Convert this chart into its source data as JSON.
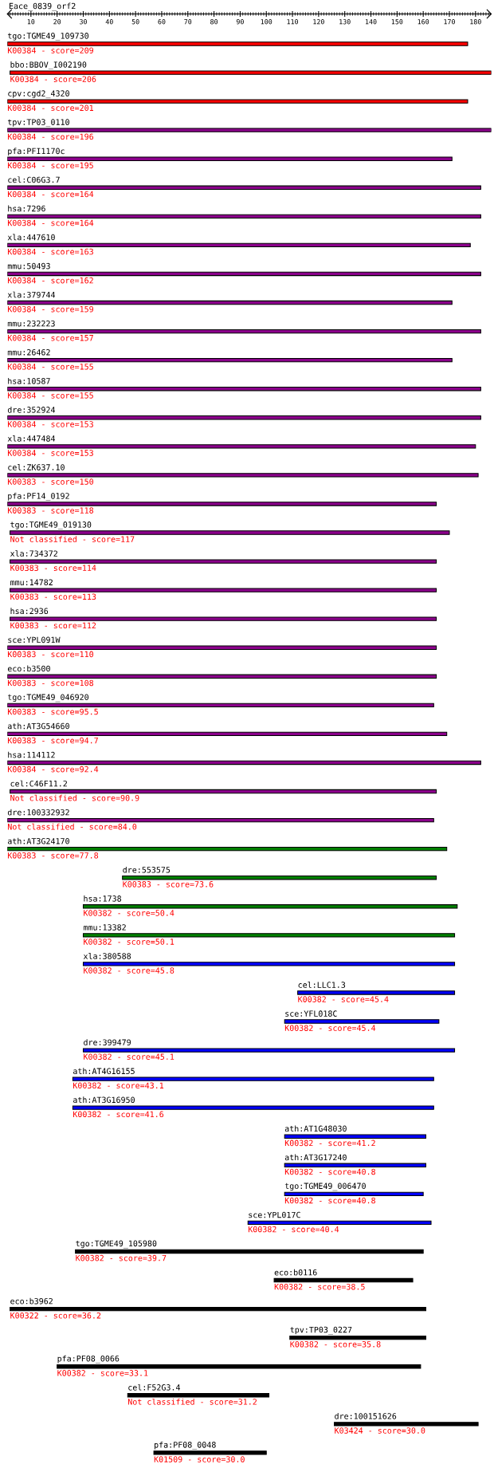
{
  "chart_data": {
    "type": "bar",
    "orientation": "horizontal",
    "title": "Eace_0839_orf2",
    "categories": [
      "tgo:TGME49_109730",
      "bbo:BBOV_I002190",
      "cpv:cgd2_4320",
      "tpv:TP03_0110",
      "pfa:PFI1170c",
      "cel:C06G3.7",
      "hsa:7296",
      "xla:447610",
      "mmu:50493",
      "xla:379744",
      "mmu:232223",
      "mmu:26462",
      "hsa:10587",
      "dre:352924",
      "xla:447484",
      "cel:ZK637.10",
      "pfa:PF14_0192",
      "tgo:TGME49_019130",
      "xla:734372",
      "mmu:14782",
      "hsa:2936",
      "sce:YPL091W",
      "eco:b3500",
      "tgo:TGME49_046920",
      "ath:AT3G54660",
      "hsa:114112",
      "cel:C46F11.2",
      "dre:100332932",
      "ath:AT3G24170",
      "dre:553575",
      "hsa:1738",
      "mmu:13382",
      "xla:380588",
      "cel:LLC1.3",
      "sce:YFL018C",
      "dre:399479",
      "ath:AT4G16155",
      "ath:AT3G16950",
      "ath:AT1G48030",
      "ath:AT3G17240",
      "tgo:TGME49_006470",
      "sce:YPL017C",
      "tgo:TGME49_105980",
      "eco:b0116",
      "eco:b3962",
      "tpv:TP03_0227",
      "pfa:PF08_0066",
      "cel:F52G3.4",
      "dre:100151626",
      "pfa:PF08_0048"
    ],
    "base": [
      1,
      2,
      1,
      1,
      1,
      1,
      1,
      1,
      1,
      1,
      1,
      1,
      1,
      1,
      1,
      1,
      1,
      2,
      2,
      2,
      2,
      1,
      1,
      1,
      1,
      1,
      2,
      1,
      1,
      45,
      30,
      30,
      30,
      112,
      107,
      30,
      26,
      26,
      107,
      107,
      107,
      93,
      27,
      103,
      2,
      109,
      20,
      47,
      126,
      57
    ],
    "values": [
      176,
      184,
      176,
      185,
      170,
      181,
      181,
      177,
      181,
      170,
      181,
      170,
      181,
      181,
      179,
      180,
      164,
      168,
      163,
      163,
      163,
      164,
      164,
      163,
      168,
      181,
      163,
      163,
      168,
      120,
      143,
      142,
      142,
      60,
      59,
      142,
      138,
      138,
      54,
      54,
      53,
      70,
      133,
      53,
      159,
      52,
      139,
      54,
      55,
      43
    ],
    "colors": [
      "#ff0000",
      "#ff0000",
      "#ff0000",
      "#8b008b",
      "#8b008b",
      "#8b008b",
      "#8b008b",
      "#8b008b",
      "#8b008b",
      "#8b008b",
      "#8b008b",
      "#8b008b",
      "#8b008b",
      "#8b008b",
      "#8b008b",
      "#8b008b",
      "#8b008b",
      "#8b008b",
      "#8b008b",
      "#8b008b",
      "#8b008b",
      "#8b008b",
      "#8b008b",
      "#8b008b",
      "#8b008b",
      "#8b008b",
      "#8b008b",
      "#8b008b",
      "#008000",
      "#008000",
      "#008000",
      "#008000",
      "#0000ff",
      "#0000ff",
      "#0000ff",
      "#0000ff",
      "#0000ff",
      "#0000ff",
      "#0000ff",
      "#0000ff",
      "#0000ff",
      "#0000ff",
      "#000000",
      "#000000",
      "#000000",
      "#000000",
      "#000000",
      "#000000",
      "#000000",
      "#000000"
    ],
    "annotations": [
      "K00384 - score=209",
      "K00384 - score=206",
      "K00384 - score=201",
      "K00384 - score=196",
      "K00384 - score=195",
      "K00384 - score=164",
      "K00384 - score=164",
      "K00384 - score=163",
      "K00384 - score=162",
      "K00384 - score=159",
      "K00384 - score=157",
      "K00384 - score=155",
      "K00384 - score=155",
      "K00384 - score=153",
      "K00384 - score=153",
      "K00383 - score=150",
      "K00383 - score=118",
      "Not classified - score=117",
      "K00383 - score=114",
      "K00383 - score=113",
      "K00383 - score=112",
      "K00383 - score=110",
      "K00383 - score=108",
      "K00383 - score=95.5",
      "K00383 - score=94.7",
      "K00384 - score=92.4",
      "Not classified - score=90.9",
      "Not classified - score=84.0",
      "K00383 - score=77.8",
      "K00383 - score=73.6",
      "K00382 - score=50.4",
      "K00382 - score=50.1",
      "K00382 - score=45.8",
      "K00382 - score=45.4",
      "K00382 - score=45.4",
      "K00382 - score=45.1",
      "K00382 - score=43.1",
      "K00382 - score=41.6",
      "K00382 - score=41.2",
      "K00382 - score=40.8",
      "K00382 - score=40.8",
      "K00382 - score=40.4",
      "K00382 - score=39.7",
      "K00382 - score=38.5",
      "K00322 - score=36.2",
      "K00382 - score=35.8",
      "K00382 - score=33.1",
      "Not classified - score=31.2",
      "K03424 - score=30.0",
      "K01509 - score=30.0"
    ],
    "xlim": [
      1,
      186
    ],
    "xticks": [
      {
        "value": 2,
        "label": null
      },
      {
        "value": 3,
        "label": null
      },
      {
        "value": 4,
        "label": null
      },
      {
        "value": 5,
        "label": null
      },
      {
        "value": 6,
        "label": null
      },
      {
        "value": 7,
        "label": null
      },
      {
        "value": 8,
        "label": null
      },
      {
        "value": 9,
        "label": null
      },
      10,
      {
        "value": 11,
        "label": null
      },
      {
        "value": 12,
        "label": null
      },
      {
        "value": 13,
        "label": null
      },
      {
        "value": 14,
        "label": null
      },
      {
        "value": 15,
        "label": null
      },
      {
        "value": 16,
        "label": null
      },
      {
        "value": 17,
        "label": null
      },
      {
        "value": 18,
        "label": null
      },
      {
        "value": 19,
        "label": null
      },
      20,
      {
        "value": 21,
        "label": null
      },
      {
        "value": 22,
        "label": null
      },
      {
        "value": 23,
        "label": null
      },
      {
        "value": 24,
        "label": null
      },
      {
        "value": 25,
        "label": null
      },
      {
        "value": 26,
        "label": null
      },
      {
        "value": 27,
        "label": null
      },
      {
        "value": 28,
        "label": null
      },
      {
        "value": 29,
        "label": null
      },
      30,
      {
        "value": 31,
        "label": null
      },
      {
        "value": 32,
        "label": null
      },
      {
        "value": 33,
        "label": null
      },
      {
        "value": 34,
        "label": null
      },
      {
        "value": 35,
        "label": null
      },
      {
        "value": 36,
        "label": null
      },
      {
        "value": 37,
        "label": null
      },
      {
        "value": 38,
        "label": null
      },
      {
        "value": 39,
        "label": null
      },
      40,
      {
        "value": 41,
        "label": null
      },
      {
        "value": 42,
        "label": null
      },
      {
        "value": 43,
        "label": null
      },
      {
        "value": 44,
        "label": null
      },
      {
        "value": 45,
        "label": null
      },
      {
        "value": 46,
        "label": null
      },
      {
        "value": 47,
        "label": null
      },
      {
        "value": 48,
        "label": null
      },
      {
        "value": 49,
        "label": null
      },
      50,
      {
        "value": 51,
        "label": null
      },
      {
        "value": 52,
        "label": null
      },
      {
        "value": 53,
        "label": null
      },
      {
        "value": 54,
        "label": null
      },
      {
        "value": 55,
        "label": null
      },
      {
        "value": 56,
        "label": null
      },
      {
        "value": 57,
        "label": null
      },
      {
        "value": 58,
        "label": null
      },
      {
        "value": 59,
        "label": null
      },
      60,
      {
        "value": 61,
        "label": null
      },
      {
        "value": 62,
        "label": null
      },
      {
        "value": 63,
        "label": null
      },
      {
        "value": 64,
        "label": null
      },
      {
        "value": 65,
        "label": null
      },
      {
        "value": 66,
        "label": null
      },
      {
        "value": 67,
        "label": null
      },
      {
        "value": 68,
        "label": null
      },
      {
        "value": 69,
        "label": null
      },
      70,
      {
        "value": 71,
        "label": null
      },
      {
        "value": 72,
        "label": null
      },
      {
        "value": 73,
        "label": null
      },
      {
        "value": 74,
        "label": null
      },
      {
        "value": 75,
        "label": null
      },
      {
        "value": 76,
        "label": null
      },
      {
        "value": 77,
        "label": null
      },
      {
        "value": 78,
        "label": null
      },
      {
        "value": 79,
        "label": null
      },
      80,
      {
        "value": 81,
        "label": null
      },
      {
        "value": 82,
        "label": null
      },
      {
        "value": 83,
        "label": null
      },
      {
        "value": 84,
        "label": null
      },
      {
        "value": 85,
        "label": null
      },
      {
        "value": 86,
        "label": null
      },
      {
        "value": 87,
        "label": null
      },
      {
        "value": 88,
        "label": null
      },
      {
        "value": 89,
        "label": null
      },
      90,
      {
        "value": 91,
        "label": null
      },
      {
        "value": 92,
        "label": null
      },
      {
        "value": 93,
        "label": null
      },
      {
        "value": 94,
        "label": null
      },
      {
        "value": 95,
        "label": null
      },
      {
        "value": 96,
        "label": null
      },
      {
        "value": 97,
        "label": null
      },
      {
        "value": 98,
        "label": null
      },
      {
        "value": 99,
        "label": null
      },
      100,
      {
        "value": 101,
        "label": null
      },
      {
        "value": 102,
        "label": null
      },
      {
        "value": 103,
        "label": null
      },
      {
        "value": 104,
        "label": null
      },
      {
        "value": 105,
        "label": null
      },
      {
        "value": 106,
        "label": null
      },
      {
        "value": 107,
        "label": null
      },
      {
        "value": 108,
        "label": null
      },
      {
        "value": 109,
        "label": null
      },
      110,
      {
        "value": 111,
        "label": null
      },
      {
        "value": 112,
        "label": null
      },
      {
        "value": 113,
        "label": null
      },
      {
        "value": 114,
        "label": null
      },
      {
        "value": 115,
        "label": null
      },
      {
        "value": 116,
        "label": null
      },
      {
        "value": 117,
        "label": null
      },
      {
        "value": 118,
        "label": null
      },
      {
        "value": 119,
        "label": null
      },
      120,
      {
        "value": 121,
        "label": null
      },
      {
        "value": 122,
        "label": null
      },
      {
        "value": 123,
        "label": null
      },
      {
        "value": 124,
        "label": null
      },
      {
        "value": 125,
        "label": null
      },
      {
        "value": 126,
        "label": null
      },
      {
        "value": 127,
        "label": null
      },
      {
        "value": 128,
        "label": null
      },
      {
        "value": 129,
        "label": null
      },
      130,
      {
        "value": 131,
        "label": null
      },
      {
        "value": 132,
        "label": null
      },
      {
        "value": 133,
        "label": null
      },
      {
        "value": 134,
        "label": null
      },
      {
        "value": 135,
        "label": null
      },
      {
        "value": 136,
        "label": null
      },
      {
        "value": 137,
        "label": null
      },
      {
        "value": 138,
        "label": null
      },
      {
        "value": 139,
        "label": null
      },
      140,
      {
        "value": 141,
        "label": null
      },
      {
        "value": 142,
        "label": null
      },
      {
        "value": 143,
        "label": null
      },
      {
        "value": 144,
        "label": null
      },
      {
        "value": 145,
        "label": null
      },
      {
        "value": 146,
        "label": null
      },
      {
        "value": 147,
        "label": null
      },
      {
        "value": 148,
        "label": null
      },
      {
        "value": 149,
        "label": null
      },
      150,
      {
        "value": 151,
        "label": null
      },
      {
        "value": 152,
        "label": null
      },
      {
        "value": 153,
        "label": null
      },
      {
        "value": 154,
        "label": null
      },
      {
        "value": 155,
        "label": null
      },
      {
        "value": 156,
        "label": null
      },
      {
        "value": 157,
        "label": null
      },
      {
        "value": 158,
        "label": null
      },
      {
        "value": 159,
        "label": null
      },
      160,
      {
        "value": 161,
        "label": null
      },
      {
        "value": 162,
        "label": null
      },
      {
        "value": 163,
        "label": null
      },
      {
        "value": 164,
        "label": null
      },
      {
        "value": 165,
        "label": null
      },
      {
        "value": 166,
        "label": null
      },
      {
        "value": 167,
        "label": null
      },
      {
        "value": 168,
        "label": null
      },
      {
        "value": 169,
        "label": null
      },
      170,
      {
        "value": 171,
        "label": null
      },
      {
        "value": 172,
        "label": null
      },
      {
        "value": 173,
        "label": null
      },
      {
        "value": 174,
        "label": null
      },
      {
        "value": 175,
        "label": null
      },
      {
        "value": 176,
        "label": null
      },
      {
        "value": 177,
        "label": null
      },
      {
        "value": 178,
        "label": null
      },
      {
        "value": 179,
        "label": null
      },
      180,
      {
        "value": 181,
        "label": null
      },
      {
        "value": 182,
        "label": null
      },
      {
        "value": 183,
        "label": null
      },
      {
        "value": 184,
        "label": null
      },
      {
        "value": 185,
        "label": null
      }
    ],
    "tick_labels": "x"
  }
}
